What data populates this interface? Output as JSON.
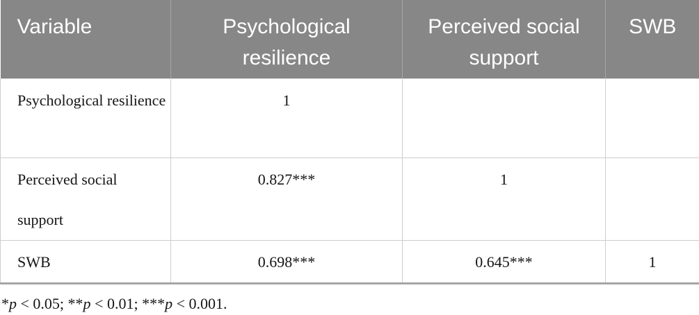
{
  "colors": {
    "header_bg": "#878787",
    "header_text": "#ffffff",
    "header_divider": "#a5a5a5",
    "grid_line": "#cdcdcd",
    "bottom_border": "#a5a5a5",
    "body_text": "#151515"
  },
  "table": {
    "columns": [
      {
        "label": "Variable"
      },
      {
        "label": "Psychological resilience"
      },
      {
        "label": "Perceived social support"
      },
      {
        "label": "SWB"
      }
    ],
    "rows": [
      {
        "label": "Psychological resilience",
        "values": [
          "1",
          "",
          ""
        ]
      },
      {
        "label": "Perceived social support",
        "values": [
          "0.827***",
          "1",
          ""
        ]
      },
      {
        "label": "SWB",
        "values": [
          "0.698***",
          "0.645***",
          "1"
        ]
      }
    ]
  },
  "footnote": {
    "text": "*p < 0.05; **p < 0.01; ***p < 0.001.",
    "segments": [
      {
        "text": "*"
      },
      {
        "text": "p"
      },
      {
        "text": " < 0.05; "
      },
      {
        "text": "**"
      },
      {
        "text": "p"
      },
      {
        "text": " < 0.01; "
      },
      {
        "text": "***"
      },
      {
        "text": "p"
      },
      {
        "text": " < 0.001."
      }
    ]
  }
}
